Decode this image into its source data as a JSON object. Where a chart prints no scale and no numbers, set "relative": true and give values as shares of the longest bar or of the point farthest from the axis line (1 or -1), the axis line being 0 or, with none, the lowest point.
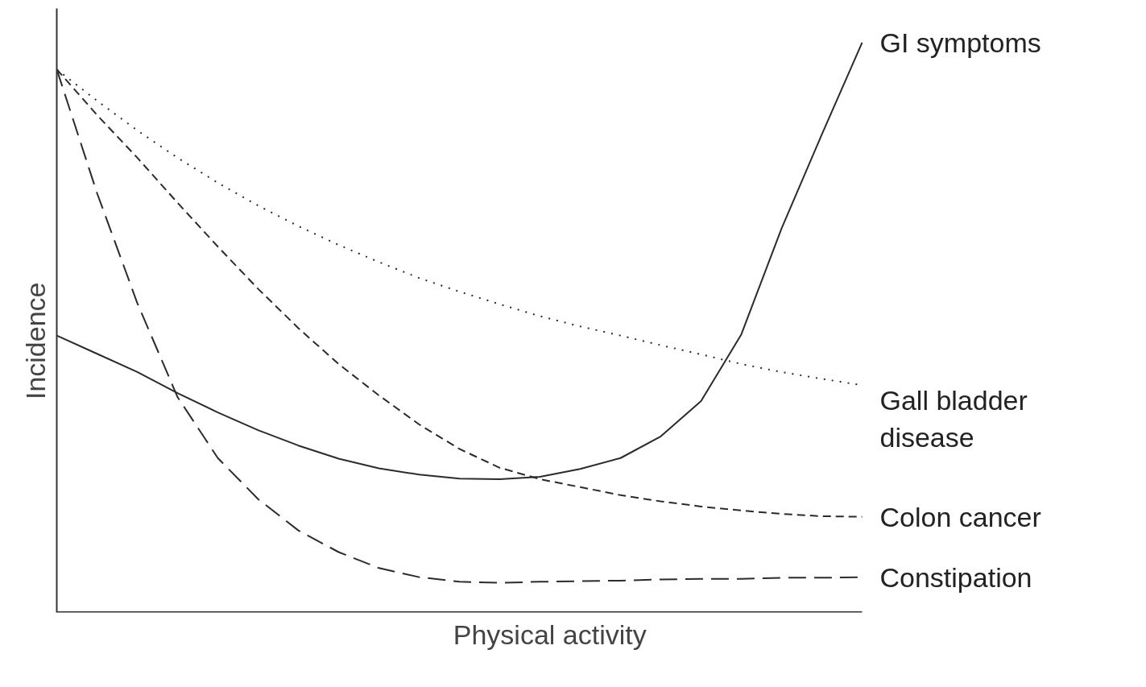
{
  "chart_data": {
    "type": "line",
    "relative": true,
    "xlabel": "Physical activity",
    "ylabel": "Incidence",
    "marker": "none",
    "categories": [
      null,
      null,
      null,
      null,
      null,
      null,
      null,
      null,
      null,
      null,
      null,
      null,
      null,
      null,
      null,
      null,
      null,
      null,
      null,
      null,
      null
    ],
    "series": [
      {
        "name": "GI symptoms",
        "color": "#2b2b2b",
        "line_style": "solid",
        "values": [
          0.486,
          0.454,
          0.422,
          0.385,
          0.351,
          0.32,
          0.293,
          0.27,
          0.253,
          0.242,
          0.235,
          0.234,
          0.238,
          0.252,
          0.271,
          0.309,
          0.371,
          0.488,
          0.674,
          0.839,
          1.0
        ]
      },
      {
        "name": "Gall bladder\ndisease",
        "color": "#2b2b2b",
        "line_style": "dotted",
        "values": [
          0.953,
          0.898,
          0.846,
          0.798,
          0.754,
          0.714,
          0.678,
          0.645,
          0.615,
          0.587,
          0.563,
          0.541,
          0.52,
          0.502,
          0.486,
          0.469,
          0.453,
          0.436,
          0.422,
          0.41,
          0.399
        ]
      },
      {
        "name": "Colon cancer",
        "color": "#2b2b2b",
        "line_style": "dashed",
        "values": [
          0.953,
          0.873,
          0.798,
          0.719,
          0.642,
          0.568,
          0.499,
          0.436,
          0.381,
          0.33,
          0.287,
          0.254,
          0.234,
          0.22,
          0.206,
          0.195,
          0.186,
          0.179,
          0.173,
          0.169,
          0.168
        ]
      },
      {
        "name": "Constipation",
        "color": "#2b2b2b",
        "line_style": "dashed",
        "values": [
          0.953,
          0.736,
          0.543,
          0.378,
          0.271,
          0.199,
          0.144,
          0.106,
          0.078,
          0.062,
          0.054,
          0.052,
          0.054,
          0.055,
          0.056,
          0.058,
          0.059,
          0.059,
          0.061,
          0.061,
          0.062
        ]
      }
    ]
  }
}
